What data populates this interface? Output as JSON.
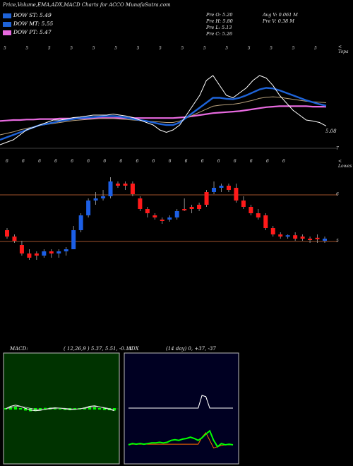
{
  "header": {
    "title": "Price,Volume,EMA,ADX,MACD Charts for ACCO MunafaSutra.com"
  },
  "legend": [
    {
      "label": "DOW ST: 5.49",
      "color": "#1e63d8"
    },
    {
      "label": "DOW MT: 5.55",
      "color": "#1e63d8"
    },
    {
      "label": "DOW PT: 5.47",
      "color": "#e86ae0"
    }
  ],
  "stats": {
    "open": "Pre   O: 5.20",
    "high": "Pre   H: 5.80",
    "low": "Pre   L: 5.13",
    "close": "Pre   C: 5.26",
    "avg_vol": "Avg V: 0.061  M",
    "pre_vol": "Pre   V: 0.38  M"
  },
  "panel1": {
    "corner_label": "< Topa",
    "price_label": "5.08",
    "small_tick": "7",
    "top_marks": [
      "5",
      "5",
      "5",
      "5",
      "5",
      "5",
      "5",
      "5",
      "5",
      "5",
      "5",
      "5",
      "5",
      "5",
      "5"
    ]
  },
  "panel2": {
    "corner_label": "< Lowes",
    "tick_upper": "6",
    "tick_lower": "5",
    "top_marks": [
      "6",
      "6",
      "6",
      "6",
      "6",
      "6",
      "6",
      "6",
      "6",
      "6",
      "6",
      "6",
      "6",
      "6",
      "6",
      "6",
      "6",
      "6"
    ]
  },
  "macd": {
    "title": "MACD:",
    "params": "( 12,26,9 ) 5.37,  5.51,  -0.14"
  },
  "adx": {
    "title": "ADX",
    "params": "(14  day) 0,  +37,  -37"
  },
  "colors": {
    "up": "#1c5fe6",
    "down": "#ff1a1a",
    "ema_blue": "#1e63d8",
    "pink": "#e86ae0",
    "grid_brown": "#a0522d",
    "green": "#00ff00"
  },
  "chart_data": [
    {
      "type": "line",
      "name": "price-ema",
      "x": [
        1,
        2,
        3,
        4,
        5,
        6,
        7,
        8,
        9,
        10,
        11,
        12,
        13,
        14,
        15,
        16,
        17,
        18,
        19,
        20,
        21,
        22,
        23,
        24,
        25,
        26,
        27,
        28,
        29,
        30,
        31,
        32,
        33,
        34,
        35,
        36,
        37,
        38,
        39,
        40,
        41,
        42,
        43,
        44,
        45,
        46,
        47,
        48,
        49,
        50
      ],
      "series": [
        {
          "values": [
            4.7,
            4.75,
            4.8,
            4.9,
            5.0,
            5.05,
            5.1,
            5.15,
            5.2,
            5.2,
            5.22,
            5.25,
            5.26,
            5.28,
            5.3,
            5.3,
            5.3,
            5.32,
            5.3,
            5.28,
            5.25,
            5.2,
            5.15,
            5.1,
            5.0,
            4.95,
            5.0,
            5.1,
            5.3,
            5.5,
            5.7,
            6.0,
            6.1,
            5.9,
            5.7,
            5.65,
            5.75,
            5.85,
            6.0,
            6.1,
            6.05,
            5.9,
            5.7,
            5.55,
            5.4,
            5.3,
            5.2,
            5.18,
            5.15,
            5.08
          ]
        },
        {
          "values": [
            4.8,
            4.85,
            4.9,
            4.95,
            5.0,
            5.05,
            5.1,
            5.12,
            5.15,
            5.18,
            5.2,
            5.22,
            5.24,
            5.25,
            5.26,
            5.27,
            5.28,
            5.28,
            5.27,
            5.25,
            5.22,
            5.2,
            5.18,
            5.15,
            5.12,
            5.1,
            5.1,
            5.15,
            5.25,
            5.35,
            5.45,
            5.55,
            5.65,
            5.65,
            5.63,
            5.62,
            5.65,
            5.7,
            5.76,
            5.82,
            5.85,
            5.84,
            5.8,
            5.75,
            5.7,
            5.65,
            5.6,
            5.56,
            5.52,
            5.49
          ]
        },
        {
          "values": [
            4.9,
            4.93,
            4.96,
            5.0,
            5.03,
            5.06,
            5.09,
            5.11,
            5.13,
            5.15,
            5.17,
            5.19,
            5.2,
            5.21,
            5.22,
            5.23,
            5.23,
            5.23,
            5.22,
            5.21,
            5.2,
            5.19,
            5.18,
            5.17,
            5.16,
            5.15,
            5.15,
            5.18,
            5.24,
            5.3,
            5.36,
            5.42,
            5.48,
            5.5,
            5.51,
            5.52,
            5.54,
            5.57,
            5.6,
            5.64,
            5.66,
            5.67,
            5.66,
            5.64,
            5.62,
            5.6,
            5.58,
            5.57,
            5.56,
            5.55
          ]
        },
        {
          "values": [
            5.18,
            5.19,
            5.2,
            5.2,
            5.21,
            5.21,
            5.22,
            5.22,
            5.22,
            5.23,
            5.23,
            5.23,
            5.23,
            5.23,
            5.24,
            5.24,
            5.24,
            5.24,
            5.24,
            5.24,
            5.24,
            5.24,
            5.24,
            5.24,
            5.24,
            5.24,
            5.24,
            5.25,
            5.26,
            5.28,
            5.3,
            5.32,
            5.34,
            5.35,
            5.36,
            5.37,
            5.38,
            5.4,
            5.42,
            5.44,
            5.46,
            5.47,
            5.48,
            5.48,
            5.48,
            5.48,
            5.48,
            5.47,
            5.47,
            5.47
          ]
        }
      ]
    },
    {
      "type": "candlestick",
      "name": "price-candles",
      "candles": [
        {
          "o": 5.8,
          "h": 5.85,
          "l": 5.6,
          "c": 5.65,
          "up": false
        },
        {
          "o": 5.65,
          "h": 5.7,
          "l": 5.5,
          "c": 5.55,
          "up": false
        },
        {
          "o": 5.45,
          "h": 5.55,
          "l": 5.2,
          "c": 5.25,
          "up": false
        },
        {
          "o": 5.25,
          "h": 5.35,
          "l": 5.1,
          "c": 5.15,
          "up": false
        },
        {
          "o": 5.2,
          "h": 5.3,
          "l": 5.1,
          "c": 5.25,
          "up": false
        },
        {
          "o": 5.2,
          "h": 5.35,
          "l": 5.15,
          "c": 5.3,
          "up": true
        },
        {
          "o": 5.25,
          "h": 5.35,
          "l": 5.15,
          "c": 5.3,
          "up": false
        },
        {
          "o": 5.25,
          "h": 5.35,
          "l": 5.15,
          "c": 5.3,
          "up": true
        },
        {
          "o": 5.3,
          "h": 5.4,
          "l": 5.2,
          "c": 5.35,
          "up": true
        },
        {
          "o": 5.35,
          "h": 5.9,
          "l": 5.35,
          "c": 5.8,
          "up": true
        },
        {
          "o": 5.8,
          "h": 6.2,
          "l": 5.75,
          "c": 6.15,
          "up": true
        },
        {
          "o": 6.15,
          "h": 6.55,
          "l": 6.1,
          "c": 6.5,
          "up": true
        },
        {
          "o": 6.5,
          "h": 6.7,
          "l": 6.4,
          "c": 6.55,
          "up": true
        },
        {
          "o": 6.55,
          "h": 6.75,
          "l": 6.5,
          "c": 6.6,
          "up": true
        },
        {
          "o": 6.6,
          "h": 7.05,
          "l": 6.55,
          "c": 6.95,
          "up": true
        },
        {
          "o": 6.9,
          "h": 6.95,
          "l": 6.8,
          "c": 6.85,
          "up": false
        },
        {
          "o": 6.9,
          "h": 6.95,
          "l": 6.75,
          "c": 6.85,
          "up": false
        },
        {
          "o": 6.9,
          "h": 6.95,
          "l": 6.6,
          "c": 6.65,
          "up": false
        },
        {
          "o": 6.55,
          "h": 6.6,
          "l": 6.25,
          "c": 6.3,
          "up": false
        },
        {
          "o": 6.3,
          "h": 6.35,
          "l": 6.1,
          "c": 6.2,
          "up": false
        },
        {
          "o": 6.15,
          "h": 6.2,
          "l": 6.05,
          "c": 6.1,
          "up": false
        },
        {
          "o": 6.05,
          "h": 6.1,
          "l": 5.95,
          "c": 6.05,
          "up": false
        },
        {
          "o": 6.05,
          "h": 6.15,
          "l": 6.0,
          "c": 6.1,
          "up": true
        },
        {
          "o": 6.1,
          "h": 6.3,
          "l": 6.05,
          "c": 6.25,
          "up": true
        },
        {
          "o": 6.3,
          "h": 6.55,
          "l": 6.25,
          "c": 6.3,
          "up": false
        },
        {
          "o": 6.3,
          "h": 6.4,
          "l": 6.2,
          "c": 6.35,
          "up": false
        },
        {
          "o": 6.3,
          "h": 6.45,
          "l": 6.25,
          "c": 6.4,
          "up": false
        },
        {
          "o": 6.4,
          "h": 6.75,
          "l": 6.35,
          "c": 6.7,
          "up": false
        },
        {
          "o": 6.7,
          "h": 6.95,
          "l": 6.65,
          "c": 6.8,
          "up": true
        },
        {
          "o": 6.8,
          "h": 6.9,
          "l": 6.7,
          "c": 6.85,
          "up": true
        },
        {
          "o": 6.85,
          "h": 6.9,
          "l": 6.7,
          "c": 6.75,
          "up": false
        },
        {
          "o": 6.8,
          "h": 6.9,
          "l": 6.45,
          "c": 6.5,
          "up": false
        },
        {
          "o": 6.5,
          "h": 6.6,
          "l": 6.3,
          "c": 6.35,
          "up": false
        },
        {
          "o": 6.35,
          "h": 6.4,
          "l": 6.15,
          "c": 6.2,
          "up": false
        },
        {
          "o": 6.2,
          "h": 6.3,
          "l": 6.05,
          "c": 6.1,
          "up": false
        },
        {
          "o": 6.15,
          "h": 6.2,
          "l": 5.8,
          "c": 5.85,
          "up": false
        },
        {
          "o": 5.85,
          "h": 5.9,
          "l": 5.65,
          "c": 5.7,
          "up": false
        },
        {
          "o": 5.7,
          "h": 5.75,
          "l": 5.6,
          "c": 5.65,
          "up": false
        },
        {
          "o": 5.65,
          "h": 5.7,
          "l": 5.6,
          "c": 5.68,
          "up": true
        },
        {
          "o": 5.68,
          "h": 5.75,
          "l": 5.55,
          "c": 5.6,
          "up": false
        },
        {
          "o": 5.6,
          "h": 5.7,
          "l": 5.55,
          "c": 5.65,
          "up": false
        },
        {
          "o": 5.6,
          "h": 5.65,
          "l": 5.5,
          "c": 5.6,
          "up": false
        },
        {
          "o": 5.6,
          "h": 5.7,
          "l": 5.5,
          "c": 5.62,
          "up": false
        },
        {
          "o": 5.55,
          "h": 5.65,
          "l": 5.5,
          "c": 5.6,
          "up": true
        }
      ]
    },
    {
      "type": "line",
      "name": "macd",
      "series": [
        {
          "values": [
            0,
            0.1,
            0.15,
            0.1,
            0.02,
            -0.05,
            -0.08,
            -0.06,
            -0.02,
            0.02,
            0.04,
            0.03,
            0.0,
            -0.03,
            -0.02,
            0.0,
            0.04,
            0.1,
            0.12,
            0.08,
            0.03,
            -0.02,
            -0.08
          ]
        },
        {
          "values": [
            0,
            0.05,
            0.1,
            0.1,
            0.06,
            0.02,
            -0.02,
            -0.04,
            -0.03,
            0.0,
            0.02,
            0.03,
            0.02,
            0.0,
            -0.01,
            0.0,
            0.02,
            0.06,
            0.09,
            0.08,
            0.05,
            0.01,
            -0.04
          ]
        }
      ]
    },
    {
      "type": "line",
      "name": "adx",
      "series": [
        {
          "values": [
            20,
            20,
            20,
            20,
            20,
            20,
            20,
            20,
            20,
            20,
            20,
            20,
            20,
            20,
            20,
            20,
            20,
            20,
            20,
            40,
            38,
            20,
            20,
            20,
            20,
            20,
            20,
            20
          ]
        },
        {
          "values": [
            -37,
            -35,
            -36,
            -35,
            -36,
            -35,
            -34,
            -34,
            -33,
            -34,
            -33,
            -30,
            -29,
            -30,
            -28,
            -27,
            -25,
            -27,
            -30,
            -26,
            -20,
            -15,
            -30,
            -40,
            -35,
            -37,
            -36,
            -37
          ]
        },
        {
          "values": [
            -36,
            -36,
            -36,
            -36,
            -36,
            -36,
            -36,
            -36,
            -36,
            -36,
            -36,
            -36,
            -36,
            -36,
            -36,
            -36,
            -36,
            -36,
            -36,
            -25,
            -18,
            -30,
            -42,
            -40,
            -38,
            -37,
            -37,
            -37
          ]
        }
      ]
    }
  ]
}
